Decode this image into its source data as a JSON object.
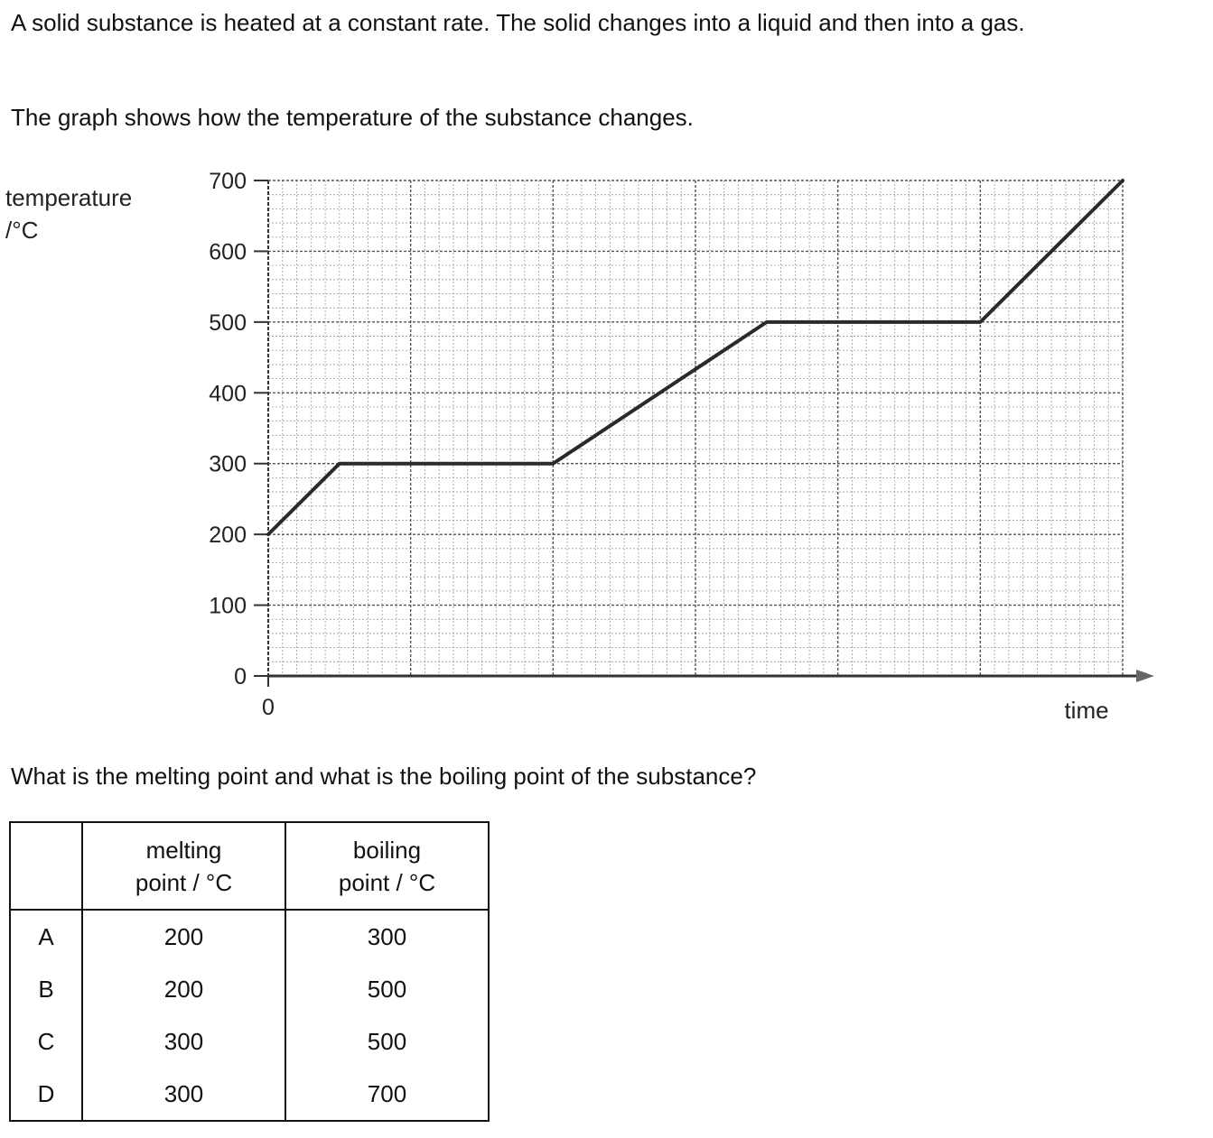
{
  "intro": "A solid substance is heated at a constant rate. The solid changes into a liquid and then into a gas.",
  "graph_intro": "The graph shows how the temperature of the substance changes.",
  "question": "What is the melting point and what is the boiling point of the substance?",
  "chart_data": {
    "type": "line",
    "title": "",
    "ylabel": [
      "temperature",
      "/°C"
    ],
    "xlabel": "time",
    "ylim": [
      0,
      700
    ],
    "yticks": [
      "0",
      "100",
      "200",
      "300",
      "400",
      "500",
      "600",
      "700"
    ],
    "xticks": [
      "0"
    ],
    "grid": true,
    "series": [
      {
        "x": [
          0,
          5,
          20,
          35,
          50,
          60
        ],
        "y": [
          200,
          300,
          300,
          500,
          500,
          700
        ]
      }
    ]
  },
  "table": {
    "headers": [
      "",
      "melting\npoint / °C",
      "boiling\npoint / °C"
    ],
    "rows": [
      {
        "option": "A",
        "melting": "200",
        "boiling": "300"
      },
      {
        "option": "B",
        "melting": "200",
        "boiling": "500"
      },
      {
        "option": "C",
        "melting": "300",
        "boiling": "500"
      },
      {
        "option": "D",
        "melting": "300",
        "boiling": "700"
      }
    ]
  }
}
